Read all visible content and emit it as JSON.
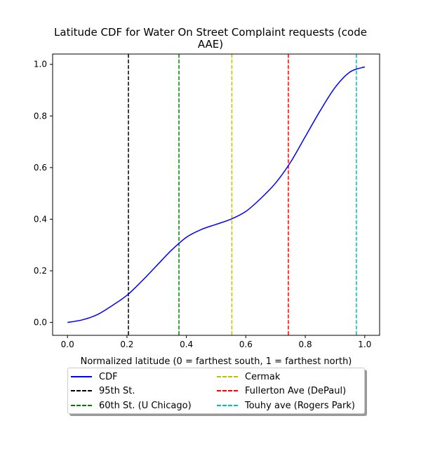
{
  "title": "Latitude CDF for Water On Street Complaint  requests (code AAE)",
  "title_lines": [
    "Latitude CDF for Water On Street Complaint  requests (code",
    "AAE)"
  ],
  "chart_data": {
    "type": "line",
    "title": "Latitude CDF for Water On Street Complaint  requests (code AAE)",
    "xlabel": "Normalized latitude (0 = farthest south, 1 = farthest north)",
    "ylabel": "",
    "xlim": [
      -0.05,
      1.05
    ],
    "ylim": [
      -0.05,
      1.04
    ],
    "grid": false,
    "legend_placement": "below",
    "xticks": [
      "0.0",
      "0.2",
      "0.4",
      "0.6",
      "0.8",
      "1.0"
    ],
    "yticks": [
      "0.0",
      "0.2",
      "0.4",
      "0.6",
      "0.8",
      "1.0"
    ],
    "series": [
      {
        "name": "CDF",
        "color": "#0000ff",
        "style": "solid",
        "x": [
          0.0,
          0.05,
          0.1,
          0.15,
          0.2,
          0.25,
          0.3,
          0.35,
          0.4,
          0.45,
          0.5,
          0.55,
          0.6,
          0.65,
          0.7,
          0.75,
          0.8,
          0.85,
          0.9,
          0.95,
          1.0
        ],
        "y": [
          0.0,
          0.01,
          0.03,
          0.065,
          0.105,
          0.16,
          0.22,
          0.28,
          0.33,
          0.36,
          0.38,
          0.4,
          0.43,
          0.48,
          0.54,
          0.62,
          0.72,
          0.82,
          0.91,
          0.97,
          0.99
        ]
      }
    ],
    "vlines": [
      {
        "name": "95th St.",
        "x": 0.205,
        "color": "#000000"
      },
      {
        "name": "60th St. (U Chicago)",
        "x": 0.375,
        "color": "#008000"
      },
      {
        "name": "Cermak",
        "x": 0.553,
        "color": "#bfbf00"
      },
      {
        "name": "Fullerton Ave (DePaul)",
        "x": 0.743,
        "color": "#ff0000"
      },
      {
        "name": "Touhy ave (Rogers Park)",
        "x": 0.972,
        "color": "#00bfbf"
      }
    ]
  },
  "legend": [
    {
      "label": "CDF",
      "color": "#0000ff",
      "dashed": false
    },
    {
      "label": "95th St.",
      "color": "#000000",
      "dashed": true
    },
    {
      "label": "60th St. (U Chicago)",
      "color": "#008000",
      "dashed": true
    },
    {
      "label": "Cermak",
      "color": "#bfbf00",
      "dashed": true
    },
    {
      "label": "Fullerton Ave (DePaul)",
      "color": "#ff0000",
      "dashed": true
    },
    {
      "label": "Touhy ave (Rogers Park)",
      "color": "#00bfbf",
      "dashed": true
    }
  ]
}
